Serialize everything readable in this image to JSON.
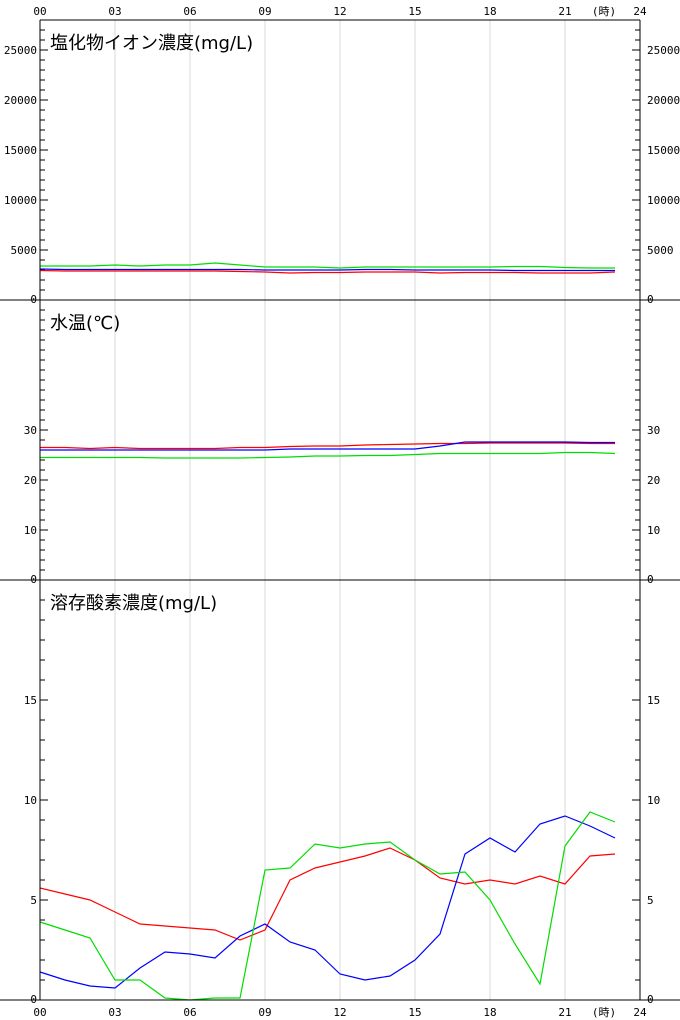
{
  "time_axis": {
    "ticks": [
      "00",
      "03",
      "06",
      "09",
      "12",
      "15",
      "18",
      "21",
      "24"
    ],
    "unit": "(時)"
  },
  "chart_data": [
    {
      "type": "line",
      "title": "塩化物イオン濃度(mg/L)",
      "ylim": [
        0,
        28000
      ],
      "yticks": [
        0,
        5000,
        10000,
        15000,
        20000,
        25000
      ],
      "x": [
        0,
        1,
        2,
        3,
        4,
        5,
        6,
        7,
        8,
        9,
        10,
        11,
        12,
        13,
        14,
        15,
        16,
        17,
        18,
        19,
        20,
        21,
        22,
        23
      ],
      "series": [
        {
          "color": "#ff0000",
          "values": [
            2950,
            2900,
            2900,
            2900,
            2900,
            2900,
            2900,
            2900,
            2850,
            2800,
            2700,
            2750,
            2750,
            2800,
            2800,
            2800,
            2700,
            2750,
            2750,
            2750,
            2700,
            2700,
            2700,
            2800
          ]
        },
        {
          "color": "#0000ff",
          "values": [
            3100,
            3050,
            3050,
            3050,
            3050,
            3050,
            3050,
            3050,
            3050,
            3000,
            3000,
            3000,
            3000,
            3050,
            3050,
            3000,
            3000,
            3000,
            3000,
            2950,
            2950,
            2950,
            2950,
            2950
          ]
        },
        {
          "color": "#00dd00",
          "values": [
            3400,
            3400,
            3400,
            3500,
            3400,
            3500,
            3500,
            3700,
            3500,
            3300,
            3300,
            3300,
            3200,
            3300,
            3300,
            3300,
            3300,
            3300,
            3300,
            3350,
            3350,
            3250,
            3200,
            3200
          ]
        }
      ]
    },
    {
      "type": "line",
      "title": "水温(℃)",
      "ylim": [
        0,
        56
      ],
      "yticks": [
        0,
        10,
        20,
        30
      ],
      "x": [
        0,
        1,
        2,
        3,
        4,
        5,
        6,
        7,
        8,
        9,
        10,
        11,
        12,
        13,
        14,
        15,
        16,
        17,
        18,
        19,
        20,
        21,
        22,
        23
      ],
      "series": [
        {
          "color": "#ff0000",
          "values": [
            26.5,
            26.5,
            26.3,
            26.5,
            26.3,
            26.3,
            26.3,
            26.3,
            26.5,
            26.5,
            26.7,
            26.8,
            26.8,
            27.0,
            27.1,
            27.2,
            27.3,
            27.3,
            27.4,
            27.4,
            27.4,
            27.4,
            27.3,
            27.3
          ]
        },
        {
          "color": "#0000ff",
          "values": [
            26.0,
            26.0,
            26.0,
            26.0,
            26.0,
            26.0,
            26.0,
            26.0,
            26.0,
            26.0,
            26.2,
            26.2,
            26.2,
            26.2,
            26.2,
            26.2,
            26.8,
            27.6,
            27.6,
            27.6,
            27.6,
            27.6,
            27.5,
            27.5
          ]
        },
        {
          "color": "#00dd00",
          "values": [
            24.5,
            24.5,
            24.5,
            24.5,
            24.5,
            24.4,
            24.4,
            24.4,
            24.4,
            24.5,
            24.6,
            24.8,
            24.8,
            24.9,
            24.9,
            25.1,
            25.3,
            25.3,
            25.3,
            25.3,
            25.3,
            25.5,
            25.5,
            25.3
          ]
        }
      ]
    },
    {
      "type": "line",
      "title": "溶存酸素濃度(mg/L)",
      "ylim": [
        0,
        21
      ],
      "yticks": [
        0,
        5,
        10,
        15
      ],
      "x": [
        0,
        1,
        2,
        3,
        4,
        5,
        6,
        7,
        8,
        9,
        10,
        11,
        12,
        13,
        14,
        15,
        16,
        17,
        18,
        19,
        20,
        21,
        22,
        23
      ],
      "series": [
        {
          "color": "#ff0000",
          "values": [
            5.6,
            5.3,
            5.0,
            4.4,
            3.8,
            3.7,
            3.6,
            3.5,
            3.0,
            3.5,
            6.0,
            6.6,
            6.9,
            7.2,
            7.6,
            7.0,
            6.1,
            5.8,
            6.0,
            5.8,
            6.2,
            5.8,
            7.2,
            7.3
          ]
        },
        {
          "color": "#0000ff",
          "values": [
            1.4,
            1.0,
            0.7,
            0.6,
            1.6,
            2.4,
            2.3,
            2.1,
            3.2,
            3.8,
            2.9,
            2.5,
            1.3,
            1.0,
            1.2,
            2.0,
            3.3,
            7.3,
            8.1,
            7.4,
            8.8,
            9.2,
            8.7,
            8.1
          ]
        },
        {
          "color": "#00dd00",
          "values": [
            3.9,
            3.5,
            3.1,
            1.0,
            1.0,
            0.1,
            0.0,
            0.1,
            0.1,
            6.5,
            6.6,
            7.8,
            7.6,
            7.8,
            7.9,
            7.0,
            6.3,
            6.4,
            5.0,
            2.8,
            0.8,
            7.7,
            9.4,
            8.9
          ]
        }
      ]
    }
  ]
}
